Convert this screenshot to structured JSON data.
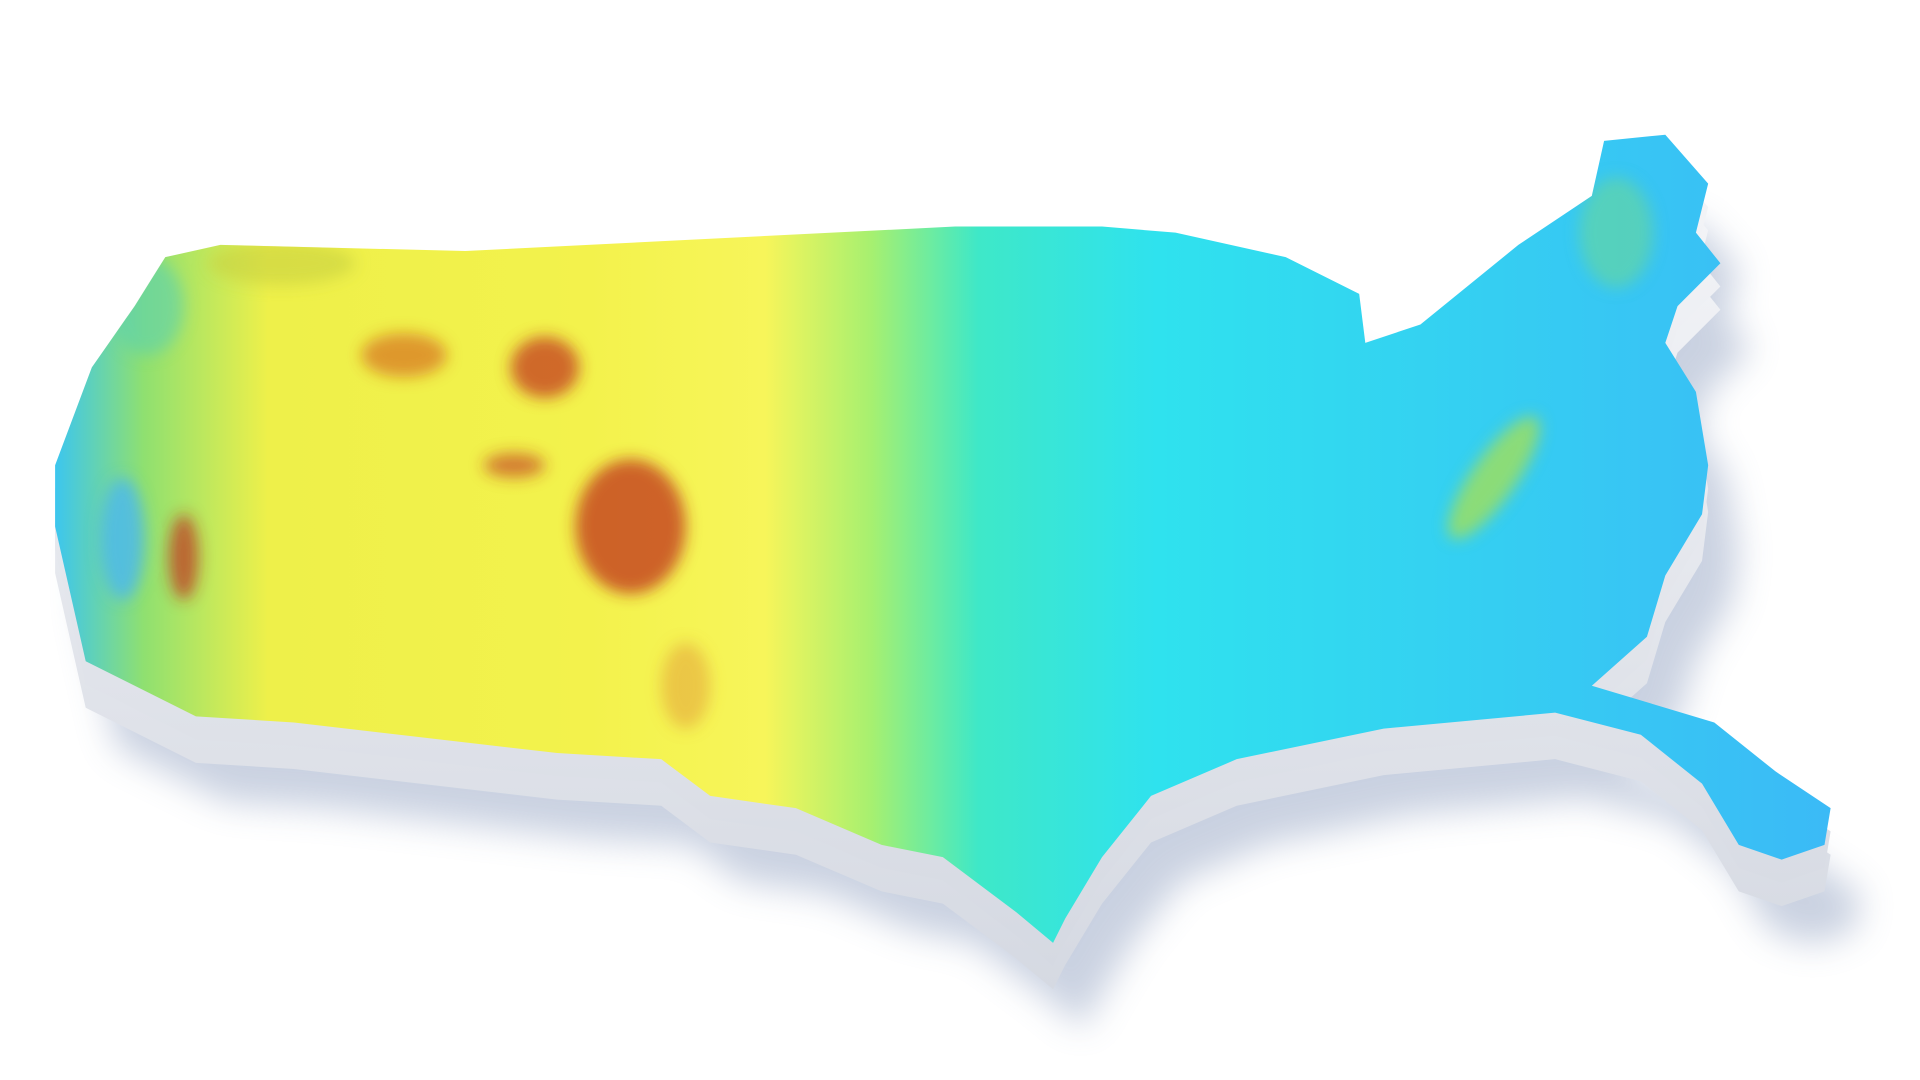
{
  "map": {
    "subject": "contiguous-united-states-elevation-relief",
    "colors": {
      "background": "#ffffff",
      "lowland": "#38bff5",
      "midland": "#2ee6e0",
      "upland": "#f5f542",
      "highland": "#c0301a",
      "extrusion_side": "#e6e8ee",
      "shadow": "#8a9bbd"
    }
  }
}
